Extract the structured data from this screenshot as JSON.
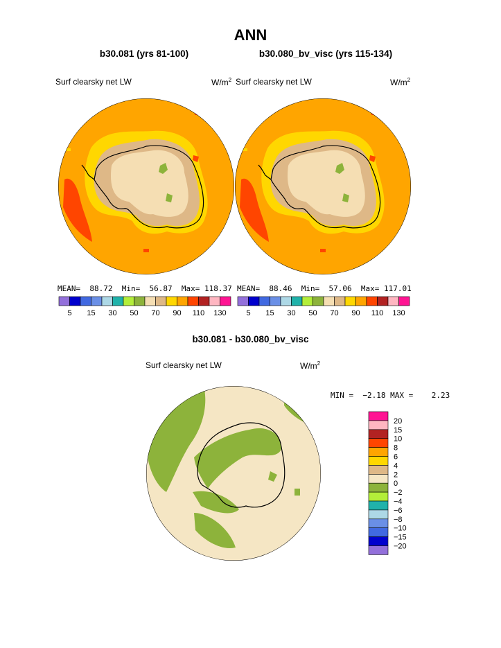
{
  "title": "ANN",
  "panels": [
    {
      "subtitle": "b30.081 (yrs 81-100)",
      "label": "Surf clearsky net LW",
      "units_base": "W/m",
      "units_sup": "2",
      "mean_label": "MEAN=",
      "mean": "88.72",
      "min_label": "Min=",
      "min": "56.87",
      "max_label": "Max=",
      "max": "118.37"
    },
    {
      "subtitle": "b30.080_bv_visc (yrs 115-134)",
      "label": "Surf clearsky net LW",
      "units_base": "W/m",
      "units_sup": "2",
      "mean_label": "MEAN=",
      "mean": "88.46",
      "min_label": "Min=",
      "min": "57.06",
      "max_label": "Max=",
      "max": "117.01"
    }
  ],
  "diff": {
    "subtitle": "b30.081 - b30.080_bv_visc",
    "label": "Surf clearsky net LW",
    "units_base": "W/m",
    "units_sup": "2",
    "minmax": "MIN =  −2.18 MAX =    2.23"
  },
  "chart_data": [
    {
      "type": "heatmap",
      "projection": "south-polar-stereographic",
      "title": "b30.081 (yrs 81-100)",
      "variable": "Surf clearsky net LW",
      "units": "W/m2",
      "mean": 88.72,
      "min": 56.87,
      "max": 118.37,
      "colorbar": {
        "levels": [
          5,
          10,
          15,
          20,
          30,
          40,
          50,
          60,
          70,
          80,
          90,
          100,
          110,
          120,
          130
        ],
        "tick_labels": [
          "5",
          "15",
          "30",
          "50",
          "70",
          "90",
          "110",
          "130"
        ],
        "colors": [
          "#9370db",
          "#0000cd",
          "#4169e1",
          "#6a8fe6",
          "#add8e6",
          "#20b2aa",
          "#b3ee3a",
          "#8db33b",
          "#f5deb3",
          "#deb887",
          "#ffd700",
          "#ffa500",
          "#ff4500",
          "#b22222",
          "#ffb6c1",
          "#ff1493"
        ]
      }
    },
    {
      "type": "heatmap",
      "projection": "south-polar-stereographic",
      "title": "b30.080_bv_visc (yrs 115-134)",
      "variable": "Surf clearsky net LW",
      "units": "W/m2",
      "mean": 88.46,
      "min": 57.06,
      "max": 117.01,
      "colorbar": {
        "levels": [
          5,
          10,
          15,
          20,
          30,
          40,
          50,
          60,
          70,
          80,
          90,
          100,
          110,
          120,
          130
        ],
        "tick_labels": [
          "5",
          "15",
          "30",
          "50",
          "70",
          "90",
          "110",
          "130"
        ],
        "colors": [
          "#9370db",
          "#0000cd",
          "#4169e1",
          "#6a8fe6",
          "#add8e6",
          "#20b2aa",
          "#b3ee3a",
          "#8db33b",
          "#f5deb3",
          "#deb887",
          "#ffd700",
          "#ffa500",
          "#ff4500",
          "#b22222",
          "#ffb6c1",
          "#ff1493"
        ]
      }
    },
    {
      "type": "heatmap",
      "projection": "south-polar-stereographic",
      "title": "b30.081 - b30.080_bv_visc",
      "variable": "Surf clearsky net LW",
      "units": "W/m2",
      "min": -2.18,
      "max": 2.23,
      "colorbar": {
        "tick_labels": [
          "20",
          "15",
          "10",
          "8",
          "6",
          "4",
          "2",
          "0",
          "−2",
          "−4",
          "−6",
          "−8",
          "−10",
          "−15",
          "−20"
        ],
        "colors": [
          "#ff1493",
          "#ffb6c1",
          "#b22222",
          "#ff4500",
          "#ffa500",
          "#ffd700",
          "#deb887",
          "#f5e6c4",
          "#8db33b",
          "#b3ee3a",
          "#20b2aa",
          "#add8e6",
          "#6a8fe6",
          "#4169e1",
          "#0000cd",
          "#9370db"
        ]
      }
    }
  ]
}
